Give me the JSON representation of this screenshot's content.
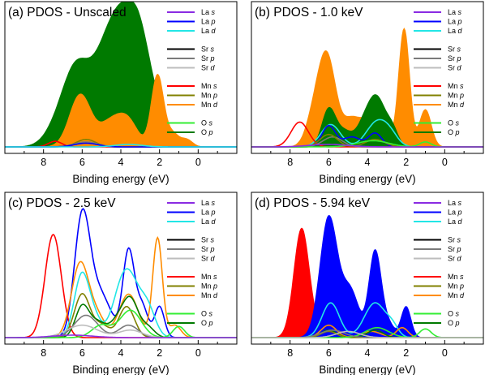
{
  "figure": {
    "xlabel": "Binding energy (eV)"
  },
  "legend": [
    {
      "el": "La",
      "orb": "s",
      "color": "#8a2be2"
    },
    {
      "el": "La",
      "orb": "p",
      "color": "#0000ff"
    },
    {
      "el": "La",
      "orb": "d",
      "color": "#22e6e6"
    },
    {
      "el": "Sr",
      "orb": "s",
      "color": "#000000"
    },
    {
      "el": "Sr",
      "orb": "p",
      "color": "#7a7a7a"
    },
    {
      "el": "Sr",
      "orb": "d",
      "color": "#bdbdbd"
    },
    {
      "el": "Mn",
      "orb": "s",
      "color": "#ff0000"
    },
    {
      "el": "Mn",
      "orb": "p",
      "color": "#808000"
    },
    {
      "el": "Mn",
      "orb": "d",
      "color": "#ff8c00"
    },
    {
      "el": "O",
      "orb": "s",
      "color": "#33ee33"
    },
    {
      "el": "O",
      "orb": "p",
      "color": "#007a00"
    }
  ],
  "chart_data": [
    {
      "type": "area",
      "title": "(a) PDOS - Unscaled",
      "xlabel": "Binding energy (eV)",
      "xlim": [
        10,
        -2
      ],
      "reversed_x": true,
      "xticks": [
        8,
        6,
        4,
        2,
        0
      ],
      "ylim": [
        0,
        1
      ],
      "filled": [
        "O p",
        "Mn d"
      ],
      "series": [
        {
          "name": "O p",
          "color": "#007a00",
          "peaks": [
            [
              7.2,
              0.12,
              0.7
            ],
            [
              6.2,
              0.62,
              0.75
            ],
            [
              4.9,
              0.42,
              0.6
            ],
            [
              3.9,
              0.95,
              0.7
            ],
            [
              3.0,
              0.55,
              0.5
            ],
            [
              2.2,
              0.28,
              0.5
            ]
          ]
        },
        {
          "name": "Mn d",
          "color": "#ff8c00",
          "peaks": [
            [
              6.1,
              0.42,
              0.55
            ],
            [
              4.5,
              0.2,
              0.6
            ],
            [
              3.6,
              0.18,
              0.5
            ],
            [
              2.1,
              0.58,
              0.32
            ],
            [
              1.3,
              0.1,
              0.3
            ],
            [
              0.6,
              0.06,
              0.3
            ]
          ]
        },
        {
          "name": "Mn s",
          "color": "#ff0000",
          "peaks": [
            [
              7.4,
              0.045,
              0.35
            ]
          ]
        },
        {
          "name": "Mn p",
          "color": "#808000",
          "peaks": [
            [
              5.8,
              0.06,
              0.5
            ]
          ]
        },
        {
          "name": "Sr p",
          "color": "#7a7a7a",
          "peaks": [
            [
              5.8,
              0.04,
              0.6
            ]
          ]
        },
        {
          "name": "La p",
          "color": "#0000ff",
          "peaks": [
            [
              5.8,
              0.03,
              0.6
            ]
          ]
        },
        {
          "name": "La d",
          "color": "#22e6e6",
          "peaks": [
            [
              3.6,
              0.02,
              0.7
            ]
          ]
        }
      ]
    },
    {
      "type": "area",
      "title": "(b) PDOS - 1.0 keV",
      "xlabel": "Binding energy (eV)",
      "xlim": [
        10,
        -2
      ],
      "reversed_x": true,
      "xticks": [
        8,
        6,
        4,
        2,
        0
      ],
      "ylim": [
        0,
        1
      ],
      "filled": [
        "Mn d",
        "O p"
      ],
      "series": [
        {
          "name": "Mn d",
          "color": "#ff8c00",
          "peaks": [
            [
              6.1,
              0.72,
              0.45
            ],
            [
              6.8,
              0.2,
              0.4
            ],
            [
              4.8,
              0.22,
              0.5
            ],
            [
              3.6,
              0.28,
              0.5
            ],
            [
              2.1,
              0.95,
              0.28
            ],
            [
              1.0,
              0.3,
              0.3
            ]
          ]
        },
        {
          "name": "O p",
          "color": "#007a00",
          "peaks": [
            [
              6.0,
              0.3,
              0.35
            ],
            [
              5.2,
              0.12,
              0.4
            ],
            [
              4.2,
              0.15,
              0.4
            ],
            [
              3.5,
              0.38,
              0.45
            ],
            [
              2.7,
              0.12,
              0.3
            ]
          ]
        },
        {
          "name": "La d",
          "color": "#22e6e6",
          "peaks": [
            [
              5.9,
              0.18,
              0.5
            ],
            [
              3.5,
              0.2,
              0.55
            ],
            [
              2.8,
              0.07,
              0.4
            ]
          ]
        },
        {
          "name": "La p",
          "color": "#0000ff",
          "peaks": [
            [
              6.0,
              0.17,
              0.35
            ],
            [
              4.8,
              0.08,
              0.45
            ],
            [
              3.6,
              0.11,
              0.35
            ]
          ]
        },
        {
          "name": "Mn s",
          "color": "#ff0000",
          "peaks": [
            [
              7.5,
              0.2,
              0.45
            ]
          ]
        },
        {
          "name": "Sr p",
          "color": "#7a7a7a",
          "peaks": [
            [
              5.8,
              0.08,
              0.5
            ]
          ]
        },
        {
          "name": "Mn p",
          "color": "#808000",
          "peaks": [
            [
              6.0,
              0.1,
              0.45
            ],
            [
              3.6,
              0.06,
              0.5
            ]
          ]
        },
        {
          "name": "O s",
          "color": "#33ee33",
          "peaks": [
            [
              3.7,
              0.05,
              0.8
            ],
            [
              1.0,
              0.04,
              0.3
            ]
          ]
        },
        {
          "name": "La s",
          "color": "#8a2be2",
          "peaks": [
            [
              6.0,
              0.02,
              1.0
            ]
          ]
        }
      ]
    },
    {
      "type": "line",
      "title": "(c) PDOS - 2.5 keV",
      "xlabel": "Binding energy (eV)",
      "xlim": [
        10,
        -2
      ],
      "reversed_x": true,
      "xticks": [
        8,
        6,
        4,
        2,
        0
      ],
      "ylim": [
        0,
        1
      ],
      "filled": [],
      "series": [
        {
          "name": "La p",
          "color": "#0000ff",
          "peaks": [
            [
              6.0,
              0.97,
              0.4
            ],
            [
              5.2,
              0.3,
              0.45
            ],
            [
              4.6,
              0.12,
              0.4
            ],
            [
              3.6,
              0.7,
              0.3
            ],
            [
              2.9,
              0.25,
              0.3
            ],
            [
              2.0,
              0.25,
              0.25
            ]
          ]
        },
        {
          "name": "Mn s",
          "color": "#ff0000",
          "peaks": [
            [
              7.5,
              0.83,
              0.42
            ]
          ]
        },
        {
          "name": "Mn d",
          "color": "#ff8c00",
          "peaks": [
            [
              6.1,
              0.6,
              0.45
            ],
            [
              5.2,
              0.15,
              0.4
            ],
            [
              3.6,
              0.35,
              0.5
            ],
            [
              2.1,
              0.8,
              0.25
            ],
            [
              1.2,
              0.1,
              0.3
            ]
          ]
        },
        {
          "name": "La d",
          "color": "#22e6e6",
          "peaks": [
            [
              6.0,
              0.52,
              0.4
            ],
            [
              5.3,
              0.1,
              0.3
            ],
            [
              3.7,
              0.55,
              0.6
            ],
            [
              2.6,
              0.2,
              0.4
            ]
          ]
        },
        {
          "name": "Mn p",
          "color": "#808000",
          "peaks": [
            [
              6.0,
              0.35,
              0.4
            ],
            [
              5.0,
              0.1,
              0.4
            ],
            [
              3.7,
              0.25,
              0.4
            ]
          ]
        },
        {
          "name": "O p",
          "color": "#007a00",
          "peaks": [
            [
              6.0,
              0.25,
              0.35
            ],
            [
              5.2,
              0.12,
              0.4
            ],
            [
              4.2,
              0.12,
              0.4
            ],
            [
              3.5,
              0.3,
              0.4
            ],
            [
              2.6,
              0.08,
              0.35
            ]
          ]
        },
        {
          "name": "Sr p",
          "color": "#7a7a7a",
          "peaks": [
            [
              5.8,
              0.18,
              0.6
            ],
            [
              3.6,
              0.1,
              0.5
            ]
          ]
        },
        {
          "name": "O s",
          "color": "#33ee33",
          "peaks": [
            [
              3.5,
              0.22,
              0.55
            ],
            [
              5.0,
              0.1,
              0.5
            ],
            [
              1.0,
              0.09,
              0.3
            ]
          ]
        },
        {
          "name": "Sr d",
          "color": "#bdbdbd",
          "peaks": [
            [
              6.0,
              0.1,
              0.8
            ],
            [
              3.5,
              0.06,
              0.6
            ]
          ]
        },
        {
          "name": "La s",
          "color": "#8a2be2",
          "peaks": [
            [
              6.5,
              0.02,
              1.0
            ]
          ]
        }
      ]
    },
    {
      "type": "area",
      "title": "(d) PDOS - 5.94 keV",
      "xlabel": "Binding energy (eV)",
      "xlim": [
        10,
        -2
      ],
      "reversed_x": true,
      "xticks": [
        8,
        6,
        4,
        2,
        0
      ],
      "ylim": [
        0,
        1
      ],
      "filled": [
        "Mn s",
        "La p"
      ],
      "series": [
        {
          "name": "Mn s",
          "color": "#ff0000",
          "peaks": [
            [
              7.4,
              0.88,
              0.4
            ],
            [
              6.2,
              0.08,
              0.4
            ]
          ]
        },
        {
          "name": "La p",
          "color": "#0000ff",
          "peaks": [
            [
              6.0,
              0.97,
              0.45
            ],
            [
              5.0,
              0.3,
              0.4
            ],
            [
              4.6,
              0.12,
              0.35
            ],
            [
              3.6,
              0.7,
              0.32
            ],
            [
              2.9,
              0.1,
              0.3
            ],
            [
              2.0,
              0.25,
              0.25
            ]
          ]
        },
        {
          "name": "La d",
          "color": "#22e6e6",
          "peaks": [
            [
              5.9,
              0.28,
              0.45
            ],
            [
              3.6,
              0.28,
              0.55
            ],
            [
              2.7,
              0.07,
              0.3
            ]
          ]
        },
        {
          "name": "Mn d",
          "color": "#ff8c00",
          "peaks": [
            [
              6.0,
              0.1,
              0.4
            ],
            [
              3.8,
              0.05,
              0.5
            ],
            [
              2.2,
              0.08,
              0.3
            ]
          ]
        },
        {
          "name": "O p",
          "color": "#007a00",
          "peaks": [
            [
              6.0,
              0.06,
              0.4
            ],
            [
              3.6,
              0.06,
              0.4
            ]
          ]
        },
        {
          "name": "Mn p",
          "color": "#808000",
          "peaks": [
            [
              6.0,
              0.05,
              0.4
            ]
          ]
        },
        {
          "name": "O s",
          "color": "#33ee33",
          "peaks": [
            [
              3.5,
              0.08,
              0.6
            ],
            [
              1.0,
              0.07,
              0.3
            ]
          ]
        },
        {
          "name": "Sr p",
          "color": "#7a7a7a",
          "peaks": [
            [
              5.8,
              0.06,
              0.6
            ]
          ]
        },
        {
          "name": "Sr d",
          "color": "#bdbdbd",
          "peaks": [
            [
              5.0,
              0.05,
              0.6
            ]
          ]
        }
      ]
    }
  ]
}
